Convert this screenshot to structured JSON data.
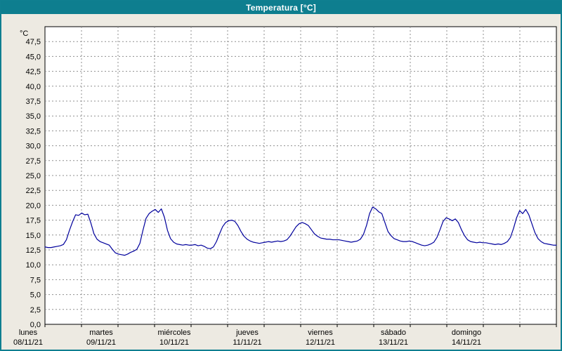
{
  "window": {
    "title": "Temperatura [°C]"
  },
  "colors": {
    "titlebar": "#0e7e8f",
    "background": "#edeae2",
    "plot_background": "#ffffff",
    "plot_border": "#000000",
    "grid": "#8f8f8f",
    "line": "#00009c",
    "label_text": "#000000"
  },
  "chart_data": {
    "type": "line",
    "title": "Temperatura [°C]",
    "y_unit_label": "°C",
    "ylim": [
      0,
      50
    ],
    "ytick_step": 2.5,
    "ytick_labels": [
      "0,0",
      "2,5",
      "5,0",
      "7,5",
      "10,0",
      "12,5",
      "15,0",
      "17,5",
      "20,0",
      "22,5",
      "25,0",
      "27,5",
      "30,0",
      "32,5",
      "35,0",
      "37,5",
      "40,0",
      "42,5",
      "45,0",
      "47,5"
    ],
    "grid": true,
    "grid_style": "dashed",
    "x_days": [
      {
        "name": "lunes",
        "date": "08/11/21"
      },
      {
        "name": "martes",
        "date": "09/11/21"
      },
      {
        "name": "miércoles",
        "date": "10/11/21"
      },
      {
        "name": "jueves",
        "date": "11/11/21"
      },
      {
        "name": "viernes",
        "date": "12/11/21"
      },
      {
        "name": "sábado",
        "date": "13/11/21"
      },
      {
        "name": "domingo",
        "date": "14/11/21"
      }
    ],
    "points_per_day": 24,
    "series": [
      {
        "name": "Temperatura",
        "values": [
          13.0,
          12.9,
          12.9,
          13.0,
          13.1,
          13.2,
          13.4,
          14.2,
          15.8,
          17.2,
          18.4,
          18.3,
          18.7,
          18.4,
          18.5,
          17.0,
          15.2,
          14.3,
          13.9,
          13.7,
          13.5,
          13.3,
          12.6,
          12.0,
          11.8,
          11.7,
          11.6,
          11.8,
          12.1,
          12.3,
          12.6,
          13.6,
          15.8,
          17.8,
          18.6,
          19.0,
          19.3,
          18.8,
          19.4,
          18.0,
          15.8,
          14.4,
          13.8,
          13.5,
          13.4,
          13.3,
          13.4,
          13.3,
          13.3,
          13.4,
          13.2,
          13.3,
          13.1,
          12.8,
          12.7,
          13.0,
          13.9,
          15.2,
          16.4,
          17.1,
          17.4,
          17.5,
          17.3,
          16.6,
          15.6,
          14.8,
          14.3,
          14.0,
          13.8,
          13.7,
          13.6,
          13.7,
          13.8,
          13.9,
          13.8,
          13.9,
          14.0,
          13.9,
          14.0,
          14.2,
          14.8,
          15.6,
          16.4,
          16.9,
          17.1,
          16.9,
          16.6,
          15.9,
          15.2,
          14.8,
          14.5,
          14.4,
          14.3,
          14.3,
          14.2,
          14.2,
          14.2,
          14.1,
          14.0,
          13.9,
          13.8,
          13.9,
          14.0,
          14.3,
          15.1,
          16.6,
          18.6,
          19.7,
          19.4,
          18.9,
          18.6,
          17.1,
          15.6,
          14.9,
          14.4,
          14.2,
          14.0,
          13.9,
          13.9,
          14.0,
          13.9,
          13.7,
          13.5,
          13.3,
          13.2,
          13.3,
          13.5,
          13.8,
          14.6,
          15.9,
          17.3,
          17.9,
          17.7,
          17.4,
          17.7,
          17.1,
          15.9,
          14.9,
          14.2,
          13.9,
          13.8,
          13.7,
          13.8,
          13.7,
          13.7,
          13.6,
          13.5,
          13.4,
          13.5,
          13.4,
          13.6,
          13.9,
          14.6,
          16.1,
          17.9,
          19.1,
          18.6,
          19.3,
          18.4,
          16.9,
          15.4,
          14.4,
          13.9,
          13.6,
          13.5,
          13.4,
          13.3,
          13.3
        ]
      }
    ]
  }
}
